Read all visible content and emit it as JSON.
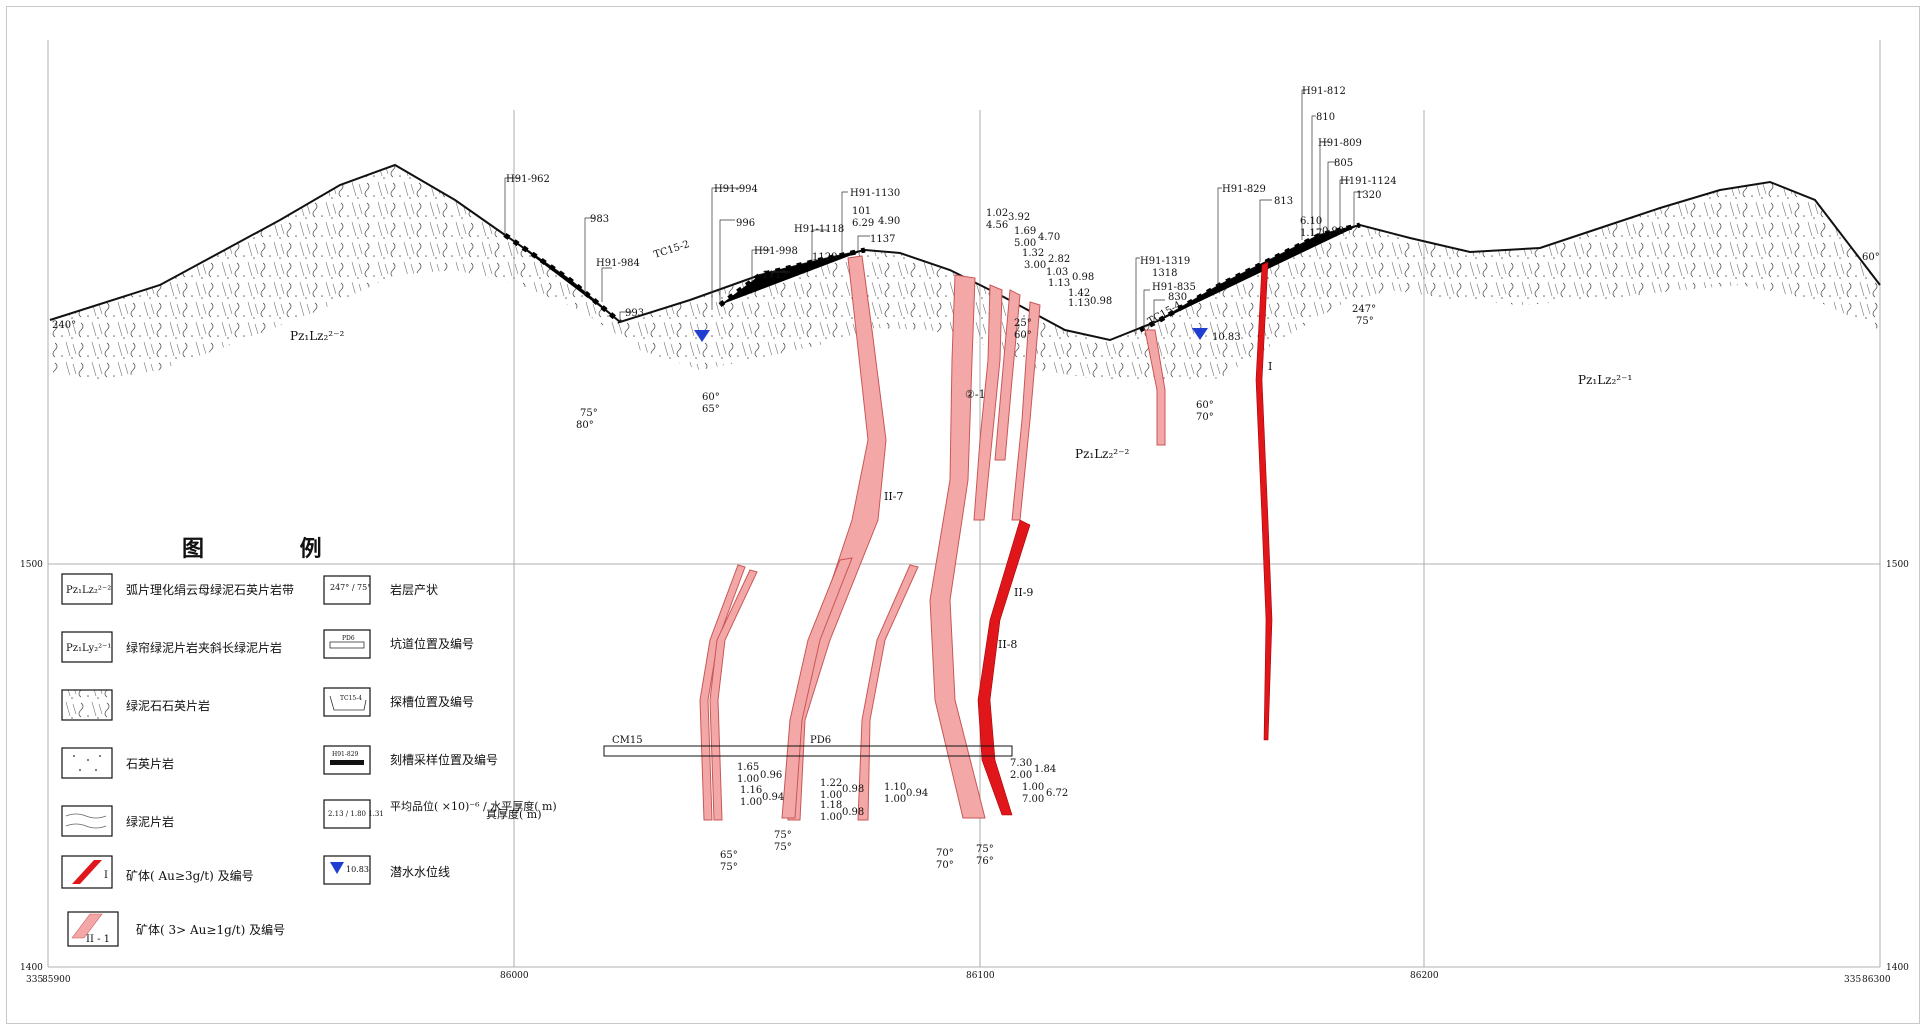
{
  "legend": {
    "title": "图 例",
    "items": [
      {
        "code": "Pz₁Lz₂²⁻²",
        "label": "弧片理化绢云母绿泥石英片岩带"
      },
      {
        "code": "Pz₁Ly₂²⁻¹",
        "label": "绿帘绿泥片岩夹斜长绿泥片岩"
      },
      {
        "code": "",
        "label": "绿泥石石英片岩"
      },
      {
        "code": "",
        "label": "石英片岩"
      },
      {
        "code": "",
        "label": "绿泥片岩"
      },
      {
        "code": "I",
        "label": "矿体( Au≥3g/t) 及编号"
      },
      {
        "code": "II - 1",
        "label": "矿体( 3> Au≥1g/t) 及编号"
      },
      {
        "code": "247° / 75°",
        "label": "岩层产状"
      },
      {
        "code": "PD6",
        "label": "坑道位置及编号"
      },
      {
        "code": "TC15-4",
        "label": "探槽位置及编号"
      },
      {
        "code": "H91-829",
        "label": "刻槽采样位置及编号"
      },
      {
        "code": "2.13 / 1.80   1.31",
        "label": "平均品位( ×10)⁻⁶ / 水平厚度( m)",
        "extra": "真厚度( m)"
      },
      {
        "code": "10.83",
        "label": "潜水水位线"
      }
    ]
  },
  "axes": {
    "x_ticks": [
      "85900",
      "86000",
      "86100",
      "86200",
      "86300"
    ],
    "y_ticks_left": [
      "1500",
      "1400"
    ],
    "y_ticks_right": [
      "1500",
      "1400"
    ],
    "corner_left": "335",
    "corner_right": "335"
  },
  "units": {
    "left": "Pz₁Lz₂²⁻²",
    "mid": "Pz₁Lz₂²⁻²",
    "right": "Pz₁Lz₂²⁻¹"
  },
  "orebodies": [
    "I",
    "II-7",
    "II-9",
    "II-8",
    "②-1"
  ],
  "tunnels": [
    "CM15",
    "PD6"
  ],
  "trenches": [
    "TC15-2",
    "TC15-4"
  ],
  "samples": [
    "H91-962",
    "983",
    "H91-984",
    "993",
    "996",
    "H91-994",
    "H91-998",
    "1117",
    "H91-1118",
    "1129",
    "H91-1130",
    "101",
    "1137",
    "H91-1319",
    "1318",
    "H91-835",
    "830",
    "H91-829",
    "813",
    "H91-812",
    "810",
    "H91-809",
    "805",
    "H191-1124",
    "1320"
  ],
  "values": {
    "v1": "6.29",
    "v2": "4.90",
    "v3": "1.02",
    "v4": "4.56",
    "v5": "3.92",
    "v6": "1.69",
    "v7": "4.70",
    "v8": "5.00",
    "v9": "1.32",
    "v10": "3.00",
    "v11": "2.82",
    "v12": "1.03",
    "v13": "1.13",
    "v14": "0.98",
    "v15": "1.42",
    "v16": "1.13",
    "v17": "0.98",
    "v18": "6.10",
    "v19": "1.17",
    "v20": "0.98",
    "v21": "10.83",
    "b1": "1.65",
    "b2": "1.00",
    "b3": "0.96",
    "b4": "1.16",
    "b5": "1.00",
    "b6": "0.94",
    "b7": "1.22",
    "b8": "1.00",
    "b9": "0.98",
    "b10": "1.18",
    "b11": "1.00",
    "b12": "0.98",
    "b13": "1.10",
    "b14": "1.00",
    "b15": "0.94",
    "b16": "7.30",
    "b17": "2.00",
    "b18": "1.84",
    "b19": "1.00",
    "b20": "7.00",
    "b21": "6.72"
  },
  "attitudes": {
    "a1": "240°",
    "a2": "60°",
    "a3": "75°",
    "a4": "80°",
    "a5": "60°",
    "a6": "65°",
    "a7": "60°",
    "a8": "70°",
    "a9": "247°",
    "a10": "75°",
    "a11": "25°",
    "a12": "60°",
    "a13": "65°",
    "a14": "75°",
    "a15": "75°",
    "a16": "75°",
    "a17": "70°",
    "a18": "70°",
    "a19": "75°",
    "a20": "76°"
  },
  "colors": {
    "ore_high": "#e0161b",
    "ore_low": "#f4a7a7",
    "ore_low_edge": "#c85757",
    "grid": "#999999",
    "water": "#1f3fd0"
  }
}
